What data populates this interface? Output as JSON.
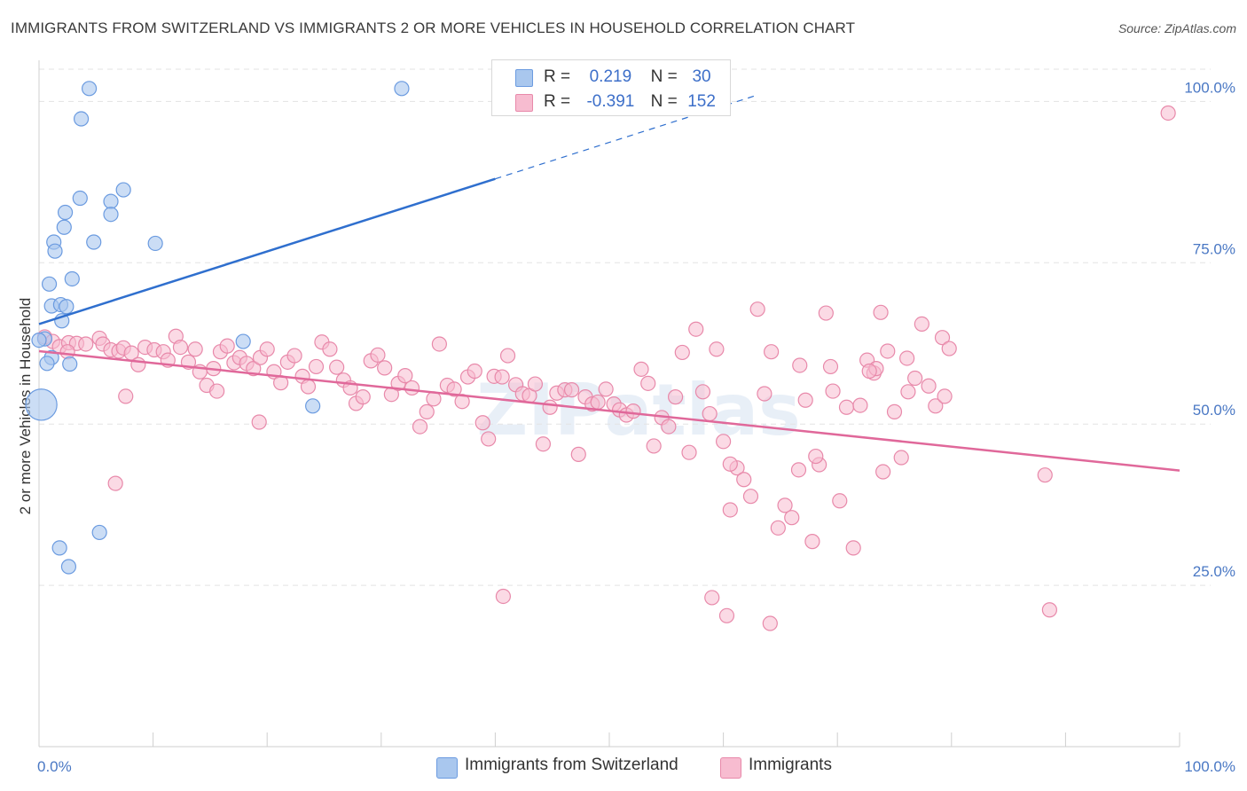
{
  "title": "IMMIGRANTS FROM SWITZERLAND VS IMMIGRANTS 2 OR MORE VEHICLES IN HOUSEHOLD CORRELATION CHART",
  "source": "Source: ZipAtlas.com",
  "legend": {
    "r_label": "R =",
    "n_label": "N =",
    "rows": [
      {
        "r": "0.219",
        "n": "30"
      },
      {
        "r": "-0.391",
        "n": "152"
      }
    ]
  },
  "bottom_legend": [
    "Immigrants from Switzerland",
    "Immigrants"
  ],
  "watermark": "ZIPatlas",
  "colors": {
    "blue_fill": "#a9c7ee",
    "blue_stroke": "#6b9be0",
    "blue_line": "#2f6fce",
    "pink_fill": "#f7bcd0",
    "pink_stroke": "#e889aa",
    "pink_line": "#e0689a",
    "tick_text": "#4a78c4",
    "grid": "#e3e3e3"
  },
  "chart_data": {
    "type": "scatter",
    "xlabel": "",
    "ylabel": "2 or more Vehicles in Household",
    "xlim": [
      0,
      100
    ],
    "ylim": [
      0,
      105
    ],
    "x_tick_labels": [
      "0.0%",
      "100.0%"
    ],
    "y_ticks": [
      25,
      50,
      75,
      100
    ],
    "y_tick_labels": [
      "25.0%",
      "50.0%",
      "75.0%",
      "100.0%"
    ],
    "series": [
      {
        "name": "Immigrants from Switzerland",
        "r": 0.219,
        "n": 30,
        "trend": {
          "x0": 0,
          "y0": 65.5,
          "x1": 40,
          "y1": 88,
          "dash_to_x": 63,
          "dash_to_y": 101
        },
        "points": [
          [
            4.4,
            102
          ],
          [
            31.8,
            102
          ],
          [
            3.7,
            97.3
          ],
          [
            7.4,
            86.3
          ],
          [
            3.6,
            85
          ],
          [
            6.3,
            84.5
          ],
          [
            6.3,
            82.5
          ],
          [
            2.3,
            82.8
          ],
          [
            2.2,
            80.5
          ],
          [
            4.8,
            78.2
          ],
          [
            10.2,
            78
          ],
          [
            1.3,
            78.2
          ],
          [
            1.4,
            76.8
          ],
          [
            2.9,
            72.5
          ],
          [
            0.9,
            71.7
          ],
          [
            1.1,
            68.3
          ],
          [
            1.9,
            68.5
          ],
          [
            2.4,
            68.2
          ],
          [
            2.0,
            66.0
          ],
          [
            0.5,
            63.2
          ],
          [
            17.9,
            62.8
          ],
          [
            1.1,
            60.3
          ],
          [
            2.7,
            59.3
          ],
          [
            0.7,
            59.4
          ],
          [
            0.2,
            53.0
          ],
          [
            24.0,
            52.8
          ],
          [
            5.3,
            33.2
          ],
          [
            1.8,
            30.8
          ],
          [
            2.6,
            27.9
          ],
          [
            0.0,
            63.0
          ]
        ],
        "point_sizes": [
          1,
          1,
          1,
          1,
          1,
          1,
          1,
          1,
          1,
          1,
          1,
          1,
          1,
          1,
          1,
          1,
          1,
          1,
          1,
          1,
          1,
          1,
          1,
          1,
          2.2,
          1,
          1,
          1,
          1,
          1
        ]
      },
      {
        "name": "Immigrants",
        "r": -0.391,
        "n": 152,
        "trend": {
          "x0": 0,
          "y0": 61.3,
          "x1": 100,
          "y1": 42.8
        },
        "points": [
          [
            0.5,
            63.5
          ],
          [
            1.2,
            62.8
          ],
          [
            1.8,
            62.0
          ],
          [
            2.6,
            62.6
          ],
          [
            3.3,
            62.5
          ],
          [
            4.1,
            62.4
          ],
          [
            5.3,
            63.3
          ],
          [
            5.6,
            62.4
          ],
          [
            6.3,
            61.5
          ],
          [
            7.0,
            61.3
          ],
          [
            7.4,
            61.8
          ],
          [
            8.1,
            61.0
          ],
          [
            8.7,
            59.2
          ],
          [
            9.3,
            61.9
          ],
          [
            10.1,
            61.5
          ],
          [
            10.9,
            61.2
          ],
          [
            11.3,
            59.9
          ],
          [
            12.0,
            63.6
          ],
          [
            12.4,
            61.9
          ],
          [
            13.1,
            59.6
          ],
          [
            13.7,
            61.6
          ],
          [
            14.1,
            58.1
          ],
          [
            14.7,
            56.0
          ],
          [
            15.3,
            58.6
          ],
          [
            15.9,
            61.2
          ],
          [
            16.5,
            62.1
          ],
          [
            17.1,
            59.5
          ],
          [
            17.6,
            60.3
          ],
          [
            18.2,
            59.4
          ],
          [
            18.8,
            58.6
          ],
          [
            19.4,
            60.3
          ],
          [
            20.0,
            61.6
          ],
          [
            20.6,
            58.1
          ],
          [
            21.2,
            56.4
          ],
          [
            21.8,
            59.6
          ],
          [
            22.4,
            60.6
          ],
          [
            23.1,
            57.4
          ],
          [
            23.6,
            55.8
          ],
          [
            24.3,
            58.9
          ],
          [
            24.8,
            62.7
          ],
          [
            25.5,
            61.6
          ],
          [
            26.1,
            58.8
          ],
          [
            26.7,
            56.8
          ],
          [
            27.3,
            55.6
          ],
          [
            27.8,
            53.2
          ],
          [
            28.4,
            54.2
          ],
          [
            29.1,
            59.8
          ],
          [
            29.7,
            60.7
          ],
          [
            30.3,
            58.7
          ],
          [
            30.9,
            54.6
          ],
          [
            31.5,
            56.3
          ],
          [
            32.1,
            57.5
          ],
          [
            32.7,
            55.6
          ],
          [
            33.4,
            49.6
          ],
          [
            34.0,
            51.9
          ],
          [
            34.6,
            53.9
          ],
          [
            35.1,
            62.4
          ],
          [
            35.8,
            56.0
          ],
          [
            36.4,
            55.4
          ],
          [
            37.1,
            53.5
          ],
          [
            37.6,
            57.3
          ],
          [
            38.2,
            58.2
          ],
          [
            38.9,
            50.2
          ],
          [
            39.4,
            47.7
          ],
          [
            39.9,
            57.4
          ],
          [
            40.6,
            57.3
          ],
          [
            41.1,
            60.6
          ],
          [
            41.8,
            56.1
          ],
          [
            42.4,
            54.7
          ],
          [
            43.0,
            54.4
          ],
          [
            43.5,
            56.2
          ],
          [
            44.2,
            46.9
          ],
          [
            44.8,
            52.6
          ],
          [
            45.4,
            54.8
          ],
          [
            46.1,
            55.3
          ],
          [
            46.7,
            55.3
          ],
          [
            47.3,
            45.3
          ],
          [
            47.9,
            54.2
          ],
          [
            48.5,
            53.1
          ],
          [
            49.0,
            53.4
          ],
          [
            49.7,
            55.4
          ],
          [
            50.4,
            53.1
          ],
          [
            50.9,
            52.2
          ],
          [
            51.5,
            51.4
          ],
          [
            52.1,
            52.0
          ],
          [
            52.8,
            58.5
          ],
          [
            53.4,
            56.3
          ],
          [
            53.9,
            46.6
          ],
          [
            54.6,
            51.0
          ],
          [
            55.2,
            49.6
          ],
          [
            55.8,
            54.2
          ],
          [
            56.4,
            61.1
          ],
          [
            57.0,
            45.6
          ],
          [
            57.6,
            64.7
          ],
          [
            58.2,
            55.0
          ],
          [
            58.8,
            51.6
          ],
          [
            59.4,
            61.6
          ],
          [
            60.0,
            47.3
          ],
          [
            60.6,
            36.7
          ],
          [
            61.2,
            43.2
          ],
          [
            61.8,
            41.4
          ],
          [
            62.4,
            38.8
          ],
          [
            63.0,
            67.8
          ],
          [
            63.6,
            54.7
          ],
          [
            64.2,
            61.2
          ],
          [
            64.8,
            33.9
          ],
          [
            65.4,
            37.4
          ],
          [
            66.0,
            35.5
          ],
          [
            66.6,
            42.9
          ],
          [
            67.2,
            53.7
          ],
          [
            67.8,
            31.8
          ],
          [
            68.4,
            43.7
          ],
          [
            69.0,
            67.2
          ],
          [
            69.6,
            55.1
          ],
          [
            70.2,
            38.1
          ],
          [
            70.8,
            52.6
          ],
          [
            71.4,
            30.8
          ],
          [
            72.0,
            52.9
          ],
          [
            72.6,
            59.9
          ],
          [
            73.2,
            57.9
          ],
          [
            73.8,
            67.3
          ],
          [
            74.4,
            61.3
          ],
          [
            75.0,
            51.9
          ],
          [
            75.6,
            44.8
          ],
          [
            76.2,
            55.0
          ],
          [
            76.8,
            57.1
          ],
          [
            77.4,
            65.5
          ],
          [
            78.0,
            55.9
          ],
          [
            78.6,
            52.8
          ],
          [
            79.2,
            63.4
          ],
          [
            79.8,
            61.7
          ],
          [
            2.5,
            61.2
          ],
          [
            6.7,
            40.8
          ],
          [
            40.7,
            23.3
          ],
          [
            59.0,
            23.1
          ],
          [
            60.3,
            20.3
          ],
          [
            64.1,
            19.1
          ],
          [
            66.7,
            59.1
          ],
          [
            69.4,
            58.9
          ],
          [
            73.4,
            58.6
          ],
          [
            60.6,
            43.8
          ],
          [
            74.0,
            42.6
          ],
          [
            88.2,
            42.1
          ],
          [
            88.6,
            21.2
          ],
          [
            99.0,
            98.2
          ],
          [
            76.1,
            60.2
          ],
          [
            68.1,
            45.0
          ],
          [
            79.4,
            54.3
          ],
          [
            72.8,
            58.2
          ],
          [
            15.6,
            55.1
          ],
          [
            7.6,
            54.3
          ],
          [
            19.3,
            50.3
          ]
        ]
      }
    ]
  }
}
